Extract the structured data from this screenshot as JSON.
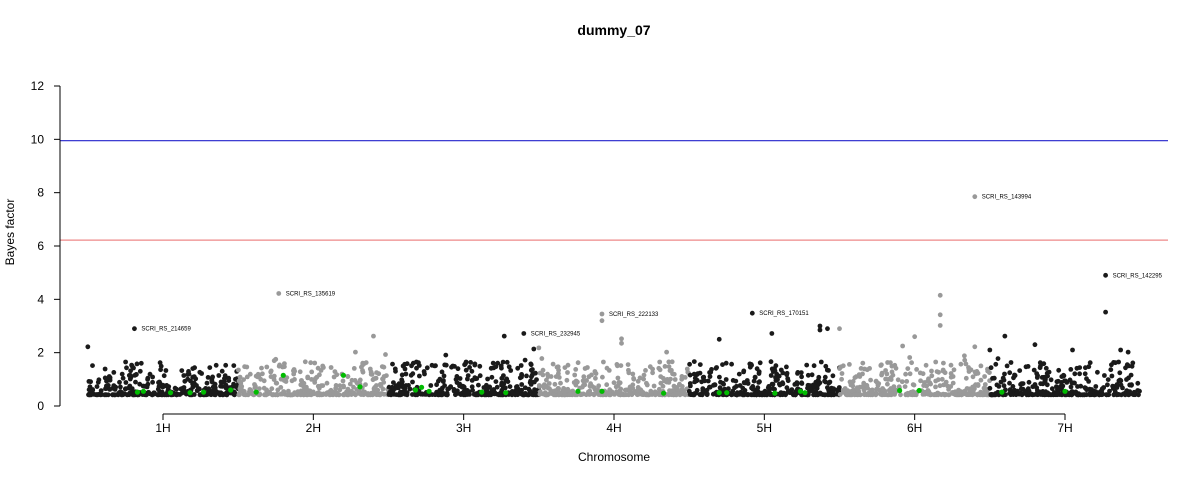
{
  "chart_data": {
    "type": "scatter",
    "title": "dummy_07",
    "xlabel": "Chromosome",
    "ylabel": "Bayes factor",
    "ylim": [
      0,
      12
    ],
    "y_ticks": [
      0,
      2,
      4,
      6,
      8,
      10,
      12
    ],
    "xlim": [
      0.45,
      7.5
    ],
    "chromosomes": [
      {
        "label": "1H",
        "start": 0.5,
        "end": 1.5,
        "center": 1.0,
        "color": "#1a1a1a"
      },
      {
        "label": "2H",
        "start": 1.5,
        "end": 2.5,
        "center": 2.0,
        "color": "#999999"
      },
      {
        "label": "3H",
        "start": 2.5,
        "end": 3.5,
        "center": 3.0,
        "color": "#1a1a1a"
      },
      {
        "label": "4H",
        "start": 3.5,
        "end": 4.5,
        "center": 4.0,
        "color": "#999999"
      },
      {
        "label": "5H",
        "start": 4.5,
        "end": 5.5,
        "center": 5.0,
        "color": "#1a1a1a"
      },
      {
        "label": "6H",
        "start": 5.5,
        "end": 6.5,
        "center": 6.0,
        "color": "#999999"
      },
      {
        "label": "7H",
        "start": 6.5,
        "end": 7.5,
        "center": 7.0,
        "color": "#1a1a1a"
      }
    ],
    "threshold_lines": [
      {
        "y": 9.95,
        "color": "#2222cc"
      },
      {
        "y": 6.22,
        "color": "#ee8888"
      }
    ],
    "highlight_color": "#00bb00",
    "labeled_points": [
      {
        "label": "SCRI_RS_214659",
        "x": 0.81,
        "y": 2.9,
        "color": "#1a1a1a"
      },
      {
        "label": "SCRI_RS_135619",
        "x": 1.77,
        "y": 4.22,
        "color": "#999999"
      },
      {
        "label": "SCRI_RS_232945",
        "x": 3.4,
        "y": 2.72,
        "color": "#1a1a1a"
      },
      {
        "label": "SCRI_RS_222133",
        "x": 3.92,
        "y": 3.45,
        "color": "#999999"
      },
      {
        "label": "SCRI_RS_170151",
        "x": 4.92,
        "y": 3.48,
        "color": "#1a1a1a"
      },
      {
        "label": "SCRI_RS_143994",
        "x": 6.4,
        "y": 7.85,
        "color": "#999999"
      },
      {
        "label": "SCRI_RS_142295",
        "x": 7.27,
        "y": 4.9,
        "color": "#1a1a1a"
      }
    ],
    "notable_points": [
      {
        "x": 0.5,
        "y": 2.22
      },
      {
        "x": 1.75,
        "y": 1.75
      },
      {
        "x": 2.4,
        "y": 2.62
      },
      {
        "x": 2.28,
        "y": 2.02
      },
      {
        "x": 2.48,
        "y": 1.93
      },
      {
        "x": 3.27,
        "y": 2.62
      },
      {
        "x": 3.5,
        "y": 2.18
      },
      {
        "x": 3.52,
        "y": 1.78
      },
      {
        "x": 3.92,
        "y": 3.2
      },
      {
        "x": 4.05,
        "y": 2.52
      },
      {
        "x": 4.05,
        "y": 2.35
      },
      {
        "x": 4.35,
        "y": 2.02
      },
      {
        "x": 4.7,
        "y": 2.5
      },
      {
        "x": 5.05,
        "y": 2.72
      },
      {
        "x": 5.37,
        "y": 3.0
      },
      {
        "x": 5.37,
        "y": 2.85
      },
      {
        "x": 5.42,
        "y": 2.9
      },
      {
        "x": 5.5,
        "y": 2.9
      },
      {
        "x": 6.17,
        "y": 4.15
      },
      {
        "x": 6.17,
        "y": 3.42
      },
      {
        "x": 6.17,
        "y": 3.02
      },
      {
        "x": 6.0,
        "y": 2.6
      },
      {
        "x": 5.92,
        "y": 2.25
      },
      {
        "x": 6.4,
        "y": 2.22
      },
      {
        "x": 6.5,
        "y": 2.1
      },
      {
        "x": 6.6,
        "y": 2.62
      },
      {
        "x": 6.8,
        "y": 2.3
      },
      {
        "x": 7.27,
        "y": 3.52
      },
      {
        "x": 7.05,
        "y": 2.1
      },
      {
        "x": 7.37,
        "y": 2.1
      },
      {
        "x": 7.42,
        "y": 2.02
      }
    ],
    "background_distribution": {
      "points_per_chromosome": 330,
      "y_floor": 0.42,
      "y_typical_max": 1.2
    },
    "highlighted_points": [
      {
        "x": 0.83,
        "y": 0.52
      },
      {
        "x": 0.87,
        "y": 0.55
      },
      {
        "x": 1.05,
        "y": 0.5
      },
      {
        "x": 1.18,
        "y": 0.5
      },
      {
        "x": 1.27,
        "y": 0.52
      },
      {
        "x": 1.45,
        "y": 0.6
      },
      {
        "x": 1.62,
        "y": 0.52
      },
      {
        "x": 1.8,
        "y": 1.15
      },
      {
        "x": 2.2,
        "y": 1.15
      },
      {
        "x": 2.31,
        "y": 0.72
      },
      {
        "x": 2.68,
        "y": 0.6
      },
      {
        "x": 2.72,
        "y": 0.7
      },
      {
        "x": 2.77,
        "y": 0.55
      },
      {
        "x": 3.12,
        "y": 0.52
      },
      {
        "x": 3.28,
        "y": 0.5
      },
      {
        "x": 3.76,
        "y": 0.55
      },
      {
        "x": 3.92,
        "y": 0.55
      },
      {
        "x": 4.33,
        "y": 0.48
      },
      {
        "x": 4.7,
        "y": 0.5
      },
      {
        "x": 4.75,
        "y": 0.5
      },
      {
        "x": 5.07,
        "y": 0.48
      },
      {
        "x": 5.24,
        "y": 0.55
      },
      {
        "x": 5.27,
        "y": 0.5
      },
      {
        "x": 5.9,
        "y": 0.58
      },
      {
        "x": 6.03,
        "y": 0.58
      },
      {
        "x": 6.58,
        "y": 0.52
      },
      {
        "x": 7.0,
        "y": 0.55
      }
    ]
  }
}
